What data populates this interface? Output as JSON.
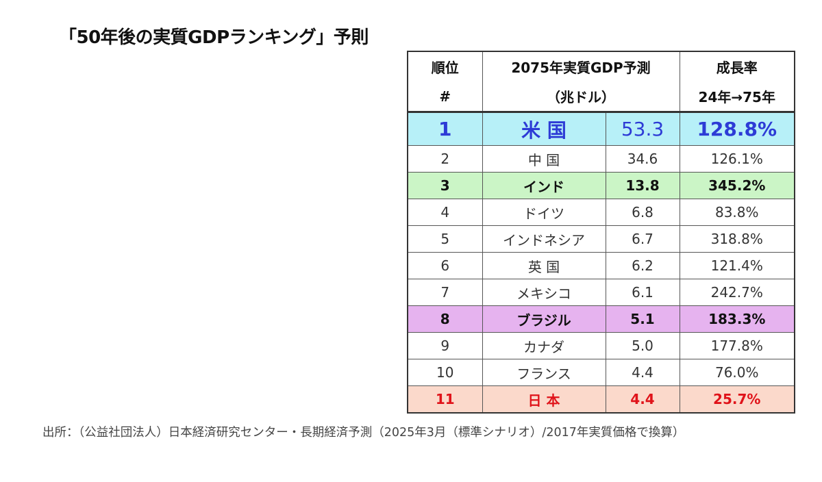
{
  "title": "「50年後の実質GDPランキング」予則",
  "table": {
    "headers": {
      "rank_line1": "順位",
      "rank_line2": "#",
      "gdp_line1": "2075年実質GDP予測",
      "gdp_line2": "（兆ドル）",
      "growth_line1": "成長率",
      "growth_line2": "24年→75年"
    },
    "rows": [
      {
        "rank": "1",
        "country": "米 国",
        "gdp": "53.3",
        "growth": "128.8%"
      },
      {
        "rank": "2",
        "country": "中 国",
        "gdp": "34.6",
        "growth": "126.1%"
      },
      {
        "rank": "3",
        "country": "インド",
        "gdp": "13.8",
        "growth": "345.2%"
      },
      {
        "rank": "4",
        "country": "ドイツ",
        "gdp": "6.8",
        "growth": "83.8%"
      },
      {
        "rank": "5",
        "country": "インドネシア",
        "gdp": "6.7",
        "growth": "318.8%"
      },
      {
        "rank": "6",
        "country": "英 国",
        "gdp": "6.2",
        "growth": "121.4%"
      },
      {
        "rank": "7",
        "country": "メキシコ",
        "gdp": "6.1",
        "growth": "242.7%"
      },
      {
        "rank": "8",
        "country": "ブラジル",
        "gdp": "5.1",
        "growth": "183.3%"
      },
      {
        "rank": "9",
        "country": "カナダ",
        "gdp": "5.0",
        "growth": "177.8%"
      },
      {
        "rank": "10",
        "country": "フランス",
        "gdp": "4.4",
        "growth": "76.0%"
      },
      {
        "rank": "11",
        "country": "日 本",
        "gdp": "4.4",
        "growth": "25.7%"
      }
    ]
  },
  "source": "出所：（公益社団法人）日本経済研究センター・長期経済予測（2025年3月（標準シナリオ）/2017年実質価格で換算）",
  "colors": {
    "row1_bg": "#b7f0f8",
    "row1_text": "#2d3bd6",
    "row3_bg": "#cbf5c6",
    "row8_bg": "#e6b3ef",
    "row11_bg": "#fbd9cb",
    "row11_text": "#e0131a"
  }
}
